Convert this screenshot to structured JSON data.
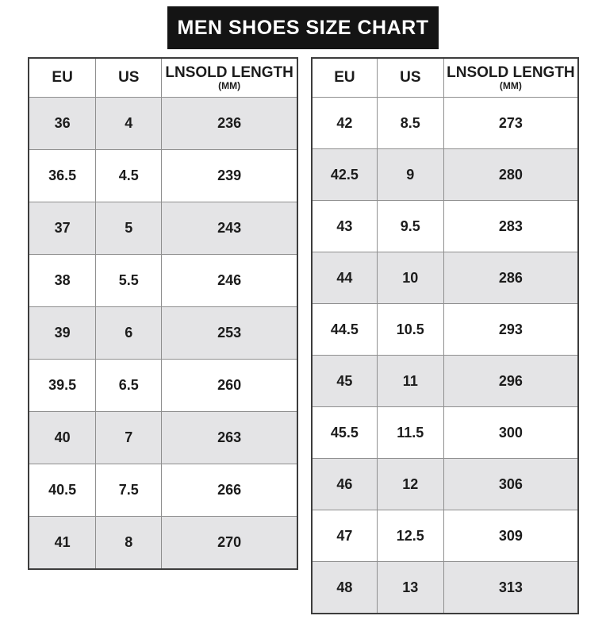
{
  "title": "MEN SHOES SIZE CHART",
  "colors": {
    "title_bg": "#141414",
    "title_text": "#ffffff",
    "row_shaded_bg": "#e4e4e6",
    "border_inner": "#8f8f8f",
    "border_outer": "#3d3d3d"
  },
  "tables": {
    "left": {
      "headers": {
        "eu": "EU",
        "us": "US",
        "length": "LNSOLD LENGTH",
        "length_unit": "(MM)"
      },
      "first_row_shaded": true,
      "rows": [
        {
          "eu": "36",
          "us": "4",
          "mm": "236"
        },
        {
          "eu": "36.5",
          "us": "4.5",
          "mm": "239"
        },
        {
          "eu": "37",
          "us": "5",
          "mm": "243"
        },
        {
          "eu": "38",
          "us": "5.5",
          "mm": "246"
        },
        {
          "eu": "39",
          "us": "6",
          "mm": "253"
        },
        {
          "eu": "39.5",
          "us": "6.5",
          "mm": "260"
        },
        {
          "eu": "40",
          "us": "7",
          "mm": "263"
        },
        {
          "eu": "40.5",
          "us": "7.5",
          "mm": "266"
        },
        {
          "eu": "41",
          "us": "8",
          "mm": "270"
        }
      ]
    },
    "right": {
      "headers": {
        "eu": "EU",
        "us": "US",
        "length": "LNSOLD LENGTH",
        "length_unit": "(MM)"
      },
      "first_row_shaded": false,
      "rows": [
        {
          "eu": "42",
          "us": "8.5",
          "mm": "273"
        },
        {
          "eu": "42.5",
          "us": "9",
          "mm": "280"
        },
        {
          "eu": "43",
          "us": "9.5",
          "mm": "283"
        },
        {
          "eu": "44",
          "us": "10",
          "mm": "286"
        },
        {
          "eu": "44.5",
          "us": "10.5",
          "mm": "293"
        },
        {
          "eu": "45",
          "us": "11",
          "mm": "296"
        },
        {
          "eu": "45.5",
          "us": "11.5",
          "mm": "300"
        },
        {
          "eu": "46",
          "us": "12",
          "mm": "306"
        },
        {
          "eu": "47",
          "us": "12.5",
          "mm": "309"
        },
        {
          "eu": "48",
          "us": "13",
          "mm": "313"
        }
      ]
    }
  },
  "chart_data": {
    "type": "table",
    "title": "MEN SHOES SIZE CHART",
    "columns": [
      "EU",
      "US",
      "LNSOLD LENGTH (MM)"
    ],
    "tables": [
      {
        "rows": [
          [
            36,
            4,
            236
          ],
          [
            36.5,
            4.5,
            239
          ],
          [
            37,
            5,
            243
          ],
          [
            38,
            5.5,
            246
          ],
          [
            39,
            6,
            253
          ],
          [
            39.5,
            6.5,
            260
          ],
          [
            40,
            7,
            263
          ],
          [
            40.5,
            7.5,
            266
          ],
          [
            41,
            8,
            270
          ]
        ]
      },
      {
        "rows": [
          [
            42,
            8.5,
            273
          ],
          [
            42.5,
            9,
            280
          ],
          [
            43,
            9.5,
            283
          ],
          [
            44,
            10,
            286
          ],
          [
            44.5,
            10.5,
            293
          ],
          [
            45,
            11,
            296
          ],
          [
            45.5,
            11.5,
            300
          ],
          [
            46,
            12,
            306
          ],
          [
            47,
            12.5,
            309
          ],
          [
            48,
            13,
            313
          ]
        ]
      }
    ]
  }
}
